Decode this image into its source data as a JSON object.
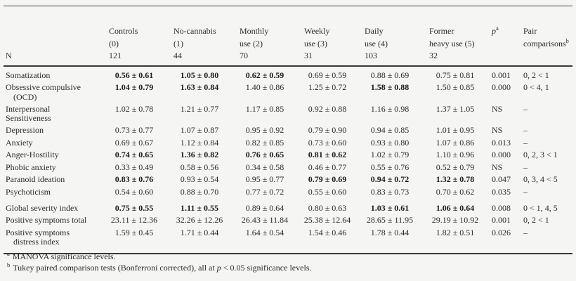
{
  "page": {
    "background": "#f5f5f3",
    "text_color": "#2b2b2b",
    "rule_color": "#3f3f3f"
  },
  "table": {
    "n_row_label": "N",
    "columns": [
      {
        "line1": "Controls",
        "line2": "(0)",
        "n": "121"
      },
      {
        "line1": "No-cannabis",
        "line2": "(1)",
        "n": "44"
      },
      {
        "line1": "Monthly",
        "line2": "use (2)",
        "n": "70"
      },
      {
        "line1": "Weekly",
        "line2": "use (3)",
        "n": "31"
      },
      {
        "line1": "Daily",
        "line2": "use (4)",
        "n": "103"
      },
      {
        "line1": "Former",
        "line2": "heavy use (5)",
        "n": "32"
      }
    ],
    "p_header": {
      "symbol": "p",
      "sup": "a"
    },
    "pair_header": {
      "line1": "Pair",
      "line2": "comparisons",
      "sup": "b"
    },
    "rows": [
      {
        "label": "Somatization",
        "values": [
          {
            "v": "0.56 ± 0.61",
            "bold": true
          },
          {
            "v": "1.05 ± 0.80",
            "bold": true
          },
          {
            "v": "0.62 ± 0.59",
            "bold": true
          },
          {
            "v": "0.69 ± 0.59",
            "bold": false
          },
          {
            "v": "0.88 ± 0.69",
            "bold": false
          },
          {
            "v": "0.75 ± 0.81",
            "bold": false
          }
        ],
        "p": "0.001",
        "pair": "0, 2 < 1"
      },
      {
        "label": "Obsessive compulsive",
        "label2": "(OCD)",
        "label2_indent": true,
        "values": [
          {
            "v": "1.04 ± 0.79",
            "bold": true
          },
          {
            "v": "1.63 ± 0.84",
            "bold": true
          },
          {
            "v": "1.40 ± 0.86",
            "bold": false
          },
          {
            "v": "1.25 ± 0.72",
            "bold": false
          },
          {
            "v": "1.58 ± 0.88",
            "bold": true
          },
          {
            "v": "1.50 ± 0.85",
            "bold": false
          }
        ],
        "p": "0.000",
        "pair": "0 < 4, 1"
      },
      {
        "label": "Interpersonal",
        "label2": "Sensitiveness",
        "label2_indent": false,
        "values": [
          {
            "v": "1.02 ± 0.78",
            "bold": false
          },
          {
            "v": "1.21 ± 0.77",
            "bold": false
          },
          {
            "v": "1.17 ± 0.85",
            "bold": false
          },
          {
            "v": "0.92 ± 0.88",
            "bold": false
          },
          {
            "v": "1.16 ± 0.98",
            "bold": false
          },
          {
            "v": "1.37 ± 1.05",
            "bold": false
          }
        ],
        "p": "NS",
        "pair": "–"
      },
      {
        "label": "Depression",
        "values": [
          {
            "v": "0.73 ± 0.77",
            "bold": false
          },
          {
            "v": "1.07 ± 0.87",
            "bold": false
          },
          {
            "v": "0.95 ± 0.92",
            "bold": false
          },
          {
            "v": "0.79 ± 0.90",
            "bold": false
          },
          {
            "v": "0.94 ± 0.85",
            "bold": false
          },
          {
            "v": "1.01 ± 0.95",
            "bold": false
          }
        ],
        "p": "NS",
        "pair": "–"
      },
      {
        "label": "Anxiety",
        "values": [
          {
            "v": "0.69 ± 0.67",
            "bold": false
          },
          {
            "v": "1.12 ± 0.84",
            "bold": false
          },
          {
            "v": "0.82 ± 0.85",
            "bold": false
          },
          {
            "v": "0.73 ± 0.60",
            "bold": false
          },
          {
            "v": "0.93 ± 0.80",
            "bold": false
          },
          {
            "v": "1.07 ± 0.86",
            "bold": false
          }
        ],
        "p": "0.013",
        "pair": "–"
      },
      {
        "label": "Anger-Hostility",
        "values": [
          {
            "v": "0.74 ± 0.65",
            "bold": true
          },
          {
            "v": "1.36 ± 0.82",
            "bold": true
          },
          {
            "v": "0.76 ± 0.65",
            "bold": true
          },
          {
            "v": "0.81 ± 0.62",
            "bold": true
          },
          {
            "v": "1.02 ± 0.79",
            "bold": false
          },
          {
            "v": "1.10 ± 0.96",
            "bold": false
          }
        ],
        "p": "0.000",
        "pair": "0, 2, 3 < 1"
      },
      {
        "label": "Phobic anxiety",
        "values": [
          {
            "v": "0.33 ± 0.49",
            "bold": false
          },
          {
            "v": "0.58 ± 0.56",
            "bold": false
          },
          {
            "v": "0.34 ± 0.58",
            "bold": false
          },
          {
            "v": "0.46 ± 0.77",
            "bold": false
          },
          {
            "v": "0.55 ± 0.76",
            "bold": false
          },
          {
            "v": "0.52 ± 0.79",
            "bold": false
          }
        ],
        "p": "NS",
        "pair": "–"
      },
      {
        "label": "Paranoid ideation",
        "values": [
          {
            "v": "0.83 ± 0.76",
            "bold": true
          },
          {
            "v": "0.93 ± 0.54",
            "bold": false
          },
          {
            "v": "0.95 ± 0.77",
            "bold": false
          },
          {
            "v": "0.79 ± 0.69",
            "bold": true
          },
          {
            "v": "0.94 ± 0.72",
            "bold": true
          },
          {
            "v": "1.32 ± 0.78",
            "bold": true
          }
        ],
        "p": "0.047",
        "pair": "0, 3, 4 < 5"
      },
      {
        "label": "Psychoticism",
        "values": [
          {
            "v": "0.54 ± 0.60",
            "bold": false
          },
          {
            "v": "0.88 ± 0.70",
            "bold": false
          },
          {
            "v": "0.77 ± 0.72",
            "bold": false
          },
          {
            "v": "0.55 ± 0.60",
            "bold": false
          },
          {
            "v": "0.83 ± 0.73",
            "bold": false
          },
          {
            "v": "0.70 ± 0.62",
            "bold": false
          }
        ],
        "p": "0.035",
        "pair": "–"
      },
      {
        "label": "Global severity index",
        "section_break": true,
        "values": [
          {
            "v": "0.75 ± 0.55",
            "bold": true
          },
          {
            "v": "1.11 ± 0.55",
            "bold": true
          },
          {
            "v": "0.89 ± 0.64",
            "bold": false
          },
          {
            "v": "0.80 ± 0.63",
            "bold": false
          },
          {
            "v": "1.03 ± 0.61",
            "bold": true
          },
          {
            "v": "1.06 ± 0.64",
            "bold": true
          }
        ],
        "p": "0.008",
        "pair": "0 < 1, 4, 5"
      },
      {
        "label": "Positive symptoms total",
        "values": [
          {
            "v": "23.11 ± 12.36",
            "bold": false
          },
          {
            "v": "32.26 ± 12.26",
            "bold": false
          },
          {
            "v": "26.43 ± 11.84",
            "bold": false
          },
          {
            "v": "25.38 ± 12.64",
            "bold": false
          },
          {
            "v": "28.65 ± 11.95",
            "bold": false
          },
          {
            "v": "29.19 ± 10.92",
            "bold": false
          }
        ],
        "p": "0.001",
        "pair": "0, 2 < 1"
      },
      {
        "label": "Positive symptoms",
        "label2": "distress index",
        "label2_indent": true,
        "values": [
          {
            "v": "1.59 ± 0.45",
            "bold": false
          },
          {
            "v": "1.71 ± 0.44",
            "bold": false
          },
          {
            "v": "1.64 ± 0.54",
            "bold": false
          },
          {
            "v": "1.54 ± 0.46",
            "bold": false
          },
          {
            "v": "1.78 ± 0.44",
            "bold": false
          },
          {
            "v": "1.82 ± 0.51",
            "bold": false
          }
        ],
        "p": "0.026",
        "pair": "–"
      }
    ]
  },
  "footnotes": [
    {
      "sup": "a",
      "pre": "MANOVA significance levels.",
      "italic": "",
      "post": ""
    },
    {
      "sup": "b",
      "pre": "Tukey paired comparison tests (Bonferroni corrected), all at ",
      "italic": "p",
      "post": " < 0.05 significance levels."
    }
  ]
}
